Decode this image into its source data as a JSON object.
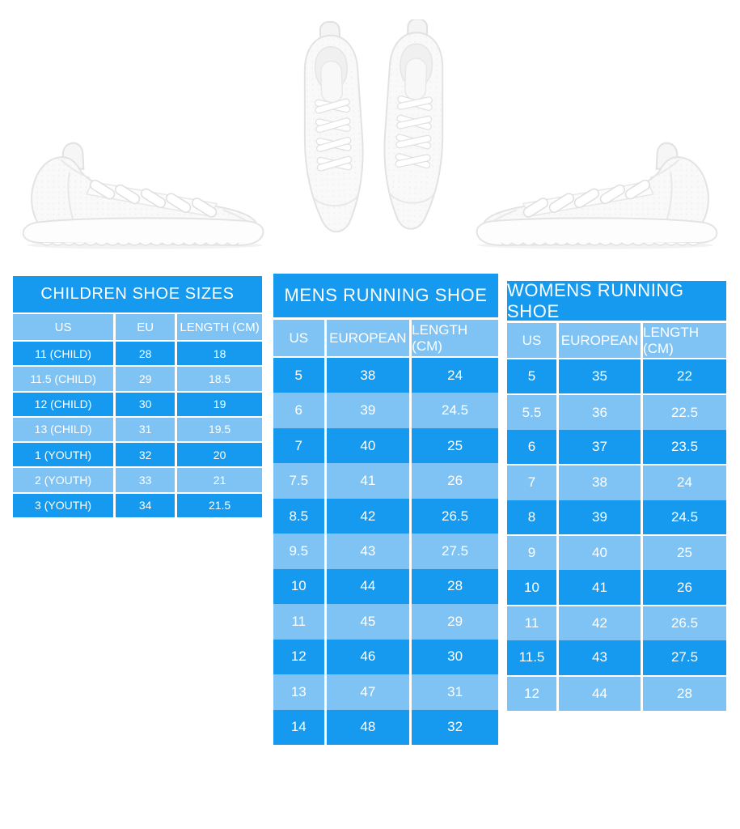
{
  "colors": {
    "title_bg": "#159af0",
    "row_dark": "#159af0",
    "row_light": "#7fc3f4",
    "header_bg": "#7fc3f4",
    "text": "#ffffff",
    "background": "#ffffff"
  },
  "images": {
    "left": "white-running-sneaker-side-view",
    "center": "white-running-sneakers-pair-top-view",
    "right": "white-running-sneaker-side-view-mirrored"
  },
  "chart_data": [
    {
      "type": "table",
      "title": "CHILDREN SHOE SIZES",
      "columns": [
        "US",
        "EU",
        "LENGTH (CM)"
      ],
      "rows": [
        [
          "11 (CHILD)",
          "28",
          "18"
        ],
        [
          "11.5 (CHILD)",
          "29",
          "18.5"
        ],
        [
          "12 (CHILD)",
          "30",
          "19"
        ],
        [
          "13 (CHILD)",
          "31",
          "19.5"
        ],
        [
          "1 (YOUTH)",
          "32",
          "20"
        ],
        [
          "2 (YOUTH)",
          "33",
          "21"
        ],
        [
          "3 (YOUTH)",
          "34",
          "21.5"
        ]
      ]
    },
    {
      "type": "table",
      "title": "MENS RUNNING SHOE",
      "columns": [
        "US",
        "EUROPEAN",
        "LENGTH (CM)"
      ],
      "rows": [
        [
          "5",
          "38",
          "24"
        ],
        [
          "6",
          "39",
          "24.5"
        ],
        [
          "7",
          "40",
          "25"
        ],
        [
          "7.5",
          "41",
          "26"
        ],
        [
          "8.5",
          "42",
          "26.5"
        ],
        [
          "9.5",
          "43",
          "27.5"
        ],
        [
          "10",
          "44",
          "28"
        ],
        [
          "11",
          "45",
          "29"
        ],
        [
          "12",
          "46",
          "30"
        ],
        [
          "13",
          "47",
          "31"
        ],
        [
          "14",
          "48",
          "32"
        ]
      ]
    },
    {
      "type": "table",
      "title": "WOMENS RUNNING SHOE",
      "columns": [
        "US",
        "EUROPEAN",
        "LENGTH (CM)"
      ],
      "rows": [
        [
          "5",
          "35",
          "22"
        ],
        [
          "5.5",
          "36",
          "22.5"
        ],
        [
          "6",
          "37",
          "23.5"
        ],
        [
          "7",
          "38",
          "24"
        ],
        [
          "8",
          "39",
          "24.5"
        ],
        [
          "9",
          "40",
          "25"
        ],
        [
          "10",
          "41",
          "26"
        ],
        [
          "11",
          "42",
          "26.5"
        ],
        [
          "11.5",
          "43",
          "27.5"
        ],
        [
          "12",
          "44",
          "28"
        ]
      ]
    }
  ]
}
